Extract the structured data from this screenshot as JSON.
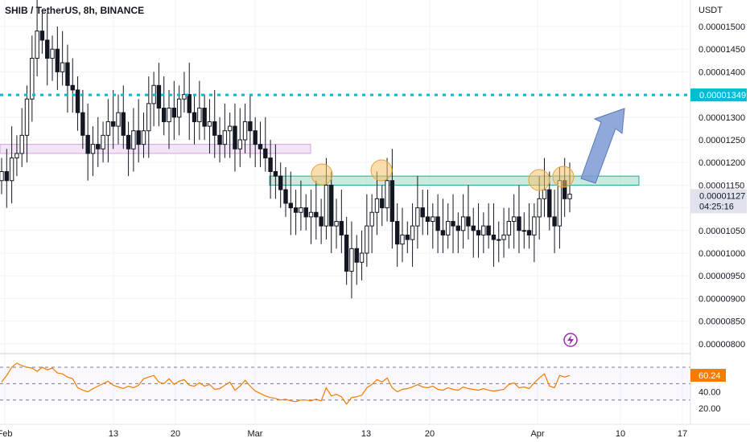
{
  "header": {
    "title": "SHIB / TetherUS, 8h, BINANCE"
  },
  "price_axis": {
    "unit_label": "USDT",
    "ticks": [
      "0.00001500",
      "0.00001450",
      "0.00001400",
      "0.00001350",
      "0.00001300",
      "0.00001250",
      "0.00001200",
      "0.00001150",
      "0.00001100",
      "0.00001050",
      "0.00001000",
      "0.00000950",
      "0.00000900",
      "0.00000850",
      "0.00000800"
    ],
    "last_price_label": "0.00001127",
    "countdown_label": "04:25:16",
    "level_label": "0.00001349"
  },
  "rsi_axis": {
    "ticks": [
      "40.00",
      "20.00"
    ],
    "value_label": "60.24"
  },
  "time_axis": {
    "ticks": [
      "Feb",
      "13",
      "20",
      "Mar",
      "13",
      "20",
      "Apr",
      "10",
      "17"
    ]
  },
  "colors": {
    "up": "#26a69a",
    "candle": "#131722",
    "rsi_line": "#f57c00",
    "level_line": "#00bcd4",
    "resistance_zone": "#a5d6c1",
    "support_box": "#d1a3e0",
    "circle": "#f5c26b",
    "arrow": "#7b9ad4",
    "last_price_bg": "#e0e3eb",
    "rsi_badge": "#f57c00"
  },
  "chart_data": {
    "type": "candlestick",
    "title": "SHIB / TetherUS, 8h, BINANCE",
    "ylabel": "USDT",
    "ylim": [
      8e-06,
      1.55e-05
    ],
    "x_axis_ticks": [
      "Feb",
      "13",
      "20",
      "Mar",
      "13",
      "20",
      "Apr",
      "10",
      "17"
    ],
    "close_series": [
      1.18e-05,
      1.16e-05,
      1.21e-05,
      1.22e-05,
      1.26e-05,
      1.34e-05,
      1.43e-05,
      1.49e-05,
      1.47e-05,
      1.43e-05,
      1.45e-05,
      1.4e-05,
      1.42e-05,
      1.37e-05,
      1.36e-05,
      1.31e-05,
      1.26e-05,
      1.22e-05,
      1.24e-05,
      1.23e-05,
      1.26e-05,
      1.29e-05,
      1.28e-05,
      1.31e-05,
      1.26e-05,
      1.23e-05,
      1.27e-05,
      1.24e-05,
      1.27e-05,
      1.33e-05,
      1.37e-05,
      1.32e-05,
      1.29e-05,
      1.32e-05,
      1.3e-05,
      1.34e-05,
      1.35e-05,
      1.31e-05,
      1.29e-05,
      1.32e-05,
      1.28e-05,
      1.29e-05,
      1.26e-05,
      1.24e-05,
      1.27e-05,
      1.28e-05,
      1.23e-05,
      1.25e-05,
      1.29e-05,
      1.27e-05,
      1.24e-05,
      1.23e-05,
      1.21e-05,
      1.18e-05,
      1.17e-05,
      1.14e-05,
      1.11e-05,
      1.1e-05,
      1.09e-05,
      1.1e-05,
      1.08e-05,
      1.09e-05,
      1.08e-05,
      1.06e-05,
      1.15e-05,
      1.06e-05,
      1.07e-05,
      1.04e-05,
      9.6e-06,
      1.01e-05,
      9.8e-06,
      1e-05,
      1.06e-05,
      1.09e-05,
      1.12e-05,
      1.1e-05,
      1.16e-05,
      1.07e-05,
      1.02e-05,
      1.04e-05,
      1.03e-05,
      1.06e-05,
      1.1e-05,
      1.08e-05,
      1.07e-05,
      1.08e-05,
      1.05e-05,
      1.04e-05,
      1.07e-05,
      1.06e-05,
      1.05e-05,
      1.08e-05,
      1.06e-05,
      1.05e-05,
      1.04e-05,
      1.06e-05,
      1.04e-05,
      1.03e-05,
      1.03e-05,
      1.04e-05,
      1.07e-05,
      1.08e-05,
      1.05e-05,
      1.05e-05,
      1.04e-05,
      1.08e-05,
      1.12e-05,
      1.14e-05,
      1.08e-05,
      1.06e-05,
      1.16e-05,
      1.12e-05,
      1.13e-05
    ],
    "last_price": 1.127e-05,
    "annotations": {
      "horizontal_level": 1.349e-05,
      "resistance_zone": [
        1.15e-05,
        1.17e-05
      ],
      "support_zone": [
        1.22e-05,
        1.24e-05
      ]
    },
    "rsi": {
      "ticks": [
        "40.00",
        "20.00"
      ],
      "last_value": 60.24,
      "values": [
        52,
        60,
        70,
        75,
        72,
        70,
        69,
        65,
        70,
        67,
        69,
        63,
        62,
        58,
        56,
        45,
        42,
        40,
        44,
        47,
        50,
        53,
        48,
        46,
        44,
        47,
        45,
        48,
        56,
        58,
        60,
        52,
        50,
        56,
        49,
        53,
        55,
        48,
        47,
        51,
        47,
        49,
        43,
        44,
        48,
        52,
        42,
        47,
        54,
        47,
        41,
        38,
        35,
        33,
        32,
        30,
        31,
        29,
        28,
        30,
        30,
        29,
        31,
        29,
        45,
        35,
        37,
        34,
        25,
        33,
        34,
        36,
        45,
        49,
        55,
        52,
        57,
        45,
        40,
        43,
        44,
        46,
        49,
        46,
        45,
        47,
        43,
        42,
        45,
        43,
        42,
        46,
        44,
        43,
        42,
        44,
        42,
        41,
        42,
        43,
        49,
        51,
        45,
        46,
        44,
        51,
        57,
        62,
        47,
        45,
        60,
        58,
        60
      ]
    }
  }
}
